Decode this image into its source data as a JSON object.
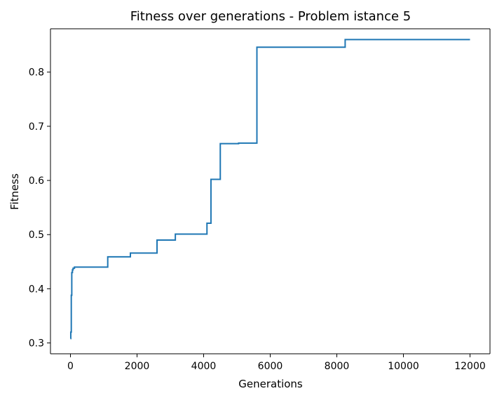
{
  "chart_data": {
    "type": "line",
    "title": "Fitness over generations - Problem istance 5",
    "xlabel": "Generations",
    "ylabel": "Fitness",
    "xlim": [
      -600,
      12600
    ],
    "ylim": [
      0.28,
      0.88
    ],
    "xticks": [
      0,
      2000,
      4000,
      6000,
      8000,
      10000,
      12000
    ],
    "xtick_labels": [
      "0",
      "2000",
      "4000",
      "6000",
      "8000",
      "10000",
      "12000"
    ],
    "yticks": [
      0.3,
      0.4,
      0.5,
      0.6,
      0.7,
      0.8
    ],
    "ytick_labels": [
      "0.3",
      "0.4",
      "0.5",
      "0.6",
      "0.7",
      "0.8"
    ],
    "grid": false,
    "legend": "none",
    "series": [
      {
        "color": "#1f77b4",
        "step": true,
        "x": [
          0,
          10,
          25,
          40,
          60,
          80,
          120,
          1120,
          1800,
          2600,
          3150,
          4100,
          4220,
          4280,
          4500,
          5050,
          5600,
          8250,
          12000
        ],
        "y": [
          0.308,
          0.32,
          0.388,
          0.43,
          0.435,
          0.438,
          0.44,
          0.459,
          0.466,
          0.49,
          0.501,
          0.521,
          0.602,
          0.602,
          0.668,
          0.669,
          0.846,
          0.86,
          0.86
        ]
      }
    ]
  }
}
